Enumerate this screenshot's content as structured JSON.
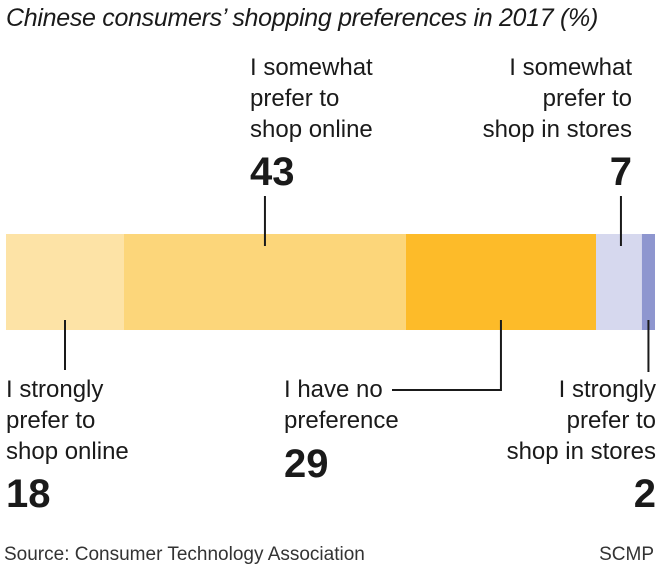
{
  "title": "Chinese consumers’ shopping preferences in 2017 (%)",
  "source": "Source: Consumer Technology Association",
  "credit": "SCMP",
  "chart_data": {
    "type": "bar",
    "stacked": true,
    "orientation": "horizontal",
    "title": "Chinese consumers’ shopping preferences in 2017 (%)",
    "categories": [
      "I strongly prefer to shop online",
      "I somewhat prefer to shop online",
      "I have no preference",
      "I somewhat prefer to shop in stores",
      "I strongly prefer to shop in stores"
    ],
    "values": [
      18,
      43,
      29,
      7,
      2
    ],
    "colors": [
      "#fde3a6",
      "#fcd67a",
      "#fdbb29",
      "#d6d8ee",
      "#8e96cf"
    ]
  },
  "labels": {
    "strong_online": "I strongly\nprefer to\nshop online",
    "somewhat_online": "I somewhat\nprefer to\nshop online",
    "no_pref": "I have no\npreference",
    "somewhat_stores": "I somewhat\nprefer to\nshop in stores",
    "strong_stores": "I strongly\nprefer to\nshop in stores"
  },
  "values_text": {
    "strong_online": "18",
    "somewhat_online": "43",
    "no_pref": "29",
    "somewhat_stores": "7",
    "strong_stores": "2"
  }
}
